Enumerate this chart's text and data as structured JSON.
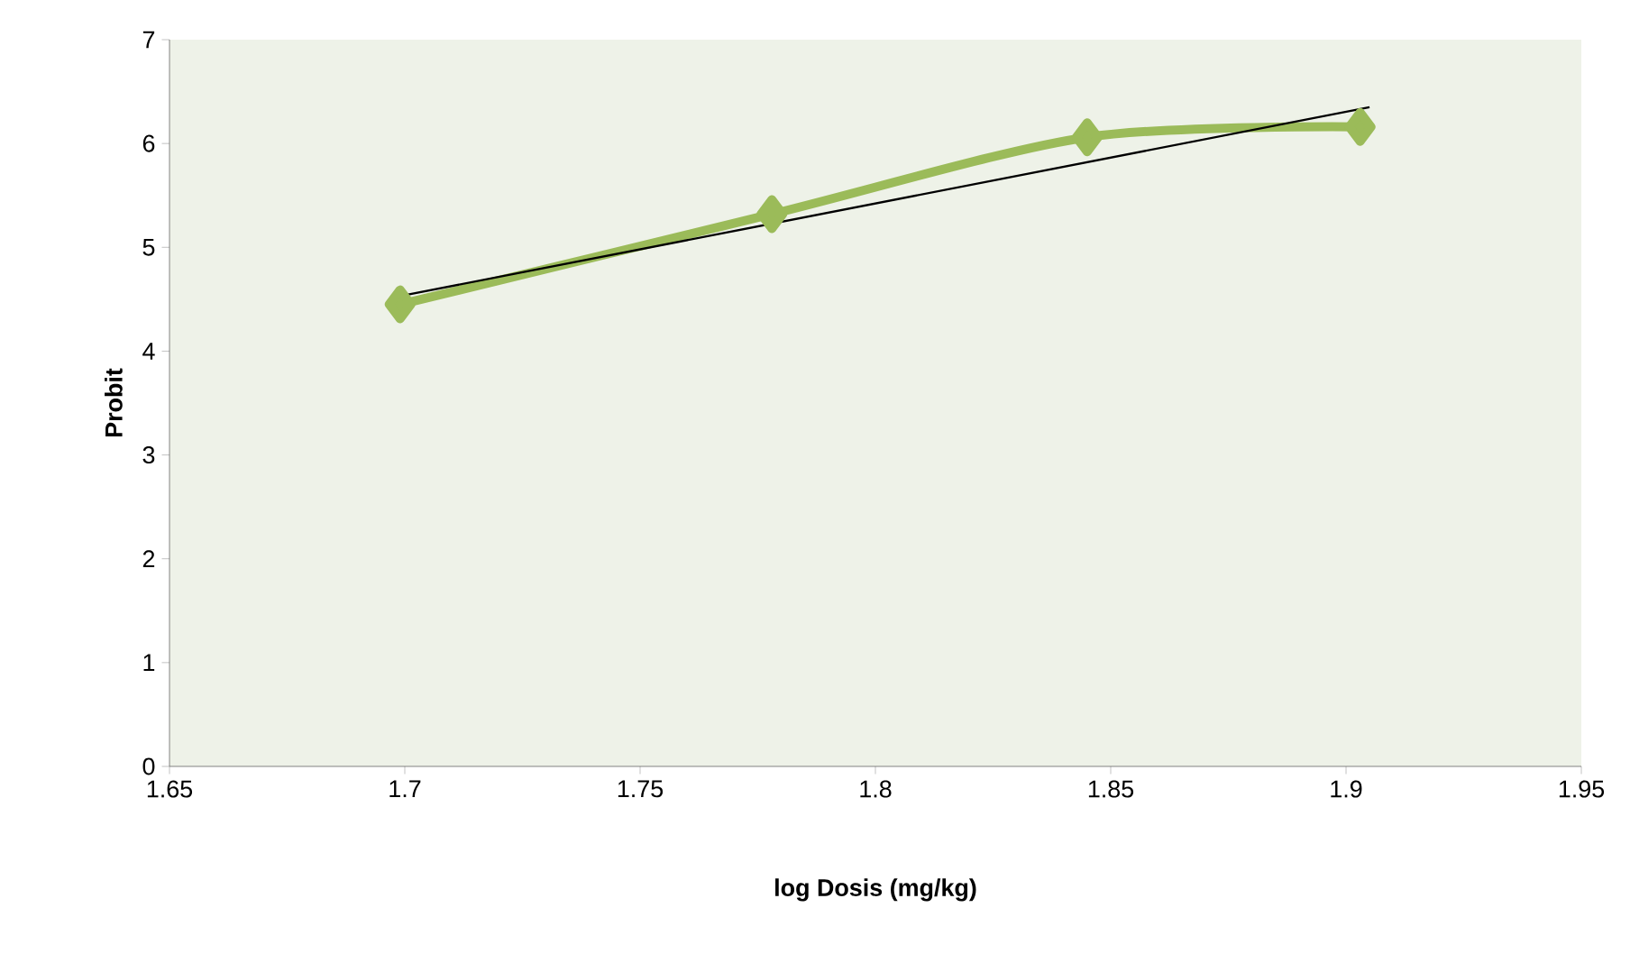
{
  "chart_data": {
    "type": "line",
    "xlabel": "log Dosis (mg/kg)",
    "ylabel": "Probit",
    "series": [
      {
        "color": "#9bbb59",
        "x": [
          1.699,
          1.778,
          1.845,
          1.903
        ],
        "values": [
          4.45,
          5.32,
          6.06,
          6.16
        ],
        "marker": "diamond",
        "line_style": "solid"
      },
      {
        "color": "#000000",
        "x": [
          1.699,
          1.905
        ],
        "values": [
          4.53,
          6.35
        ],
        "marker": "none",
        "line_style": "solid"
      }
    ],
    "xlim": [
      1.65,
      1.95
    ],
    "xticks": [
      1.65,
      1.7,
      1.75,
      1.8,
      1.85,
      1.9,
      1.95
    ],
    "ylim": [
      0,
      7
    ],
    "yticks": [
      0,
      1,
      2,
      3,
      4,
      5,
      6,
      7
    ]
  }
}
